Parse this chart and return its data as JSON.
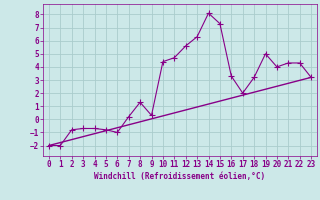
{
  "xlabel": "Windchill (Refroidissement éolien,°C)",
  "scatter_x": [
    0,
    1,
    2,
    3,
    4,
    5,
    6,
    7,
    8,
    9,
    10,
    11,
    12,
    13,
    14,
    15,
    16,
    17,
    18,
    19,
    20,
    21,
    22,
    23
  ],
  "scatter_y": [
    -2,
    -2,
    -0.8,
    -0.7,
    -0.7,
    -0.8,
    -1.0,
    0.2,
    1.3,
    0.3,
    4.4,
    4.7,
    5.6,
    6.3,
    8.1,
    7.3,
    3.3,
    2.0,
    3.2,
    5.0,
    4.0,
    4.3,
    4.3,
    3.2
  ],
  "trend_x": [
    0,
    23
  ],
  "trend_y": [
    -2.0,
    3.2
  ],
  "line_color": "#880088",
  "background_color": "#cce8e8",
  "grid_color": "#aacccc",
  "xlim": [
    -0.5,
    23.5
  ],
  "ylim": [
    -2.8,
    8.8
  ],
  "yticks": [
    -2,
    -1,
    0,
    1,
    2,
    3,
    4,
    5,
    6,
    7,
    8
  ],
  "xticks": [
    0,
    1,
    2,
    3,
    4,
    5,
    6,
    7,
    8,
    9,
    10,
    11,
    12,
    13,
    14,
    15,
    16,
    17,
    18,
    19,
    20,
    21,
    22,
    23
  ],
  "xlabel_fontsize": 5.5,
  "tick_fontsize": 5.5
}
